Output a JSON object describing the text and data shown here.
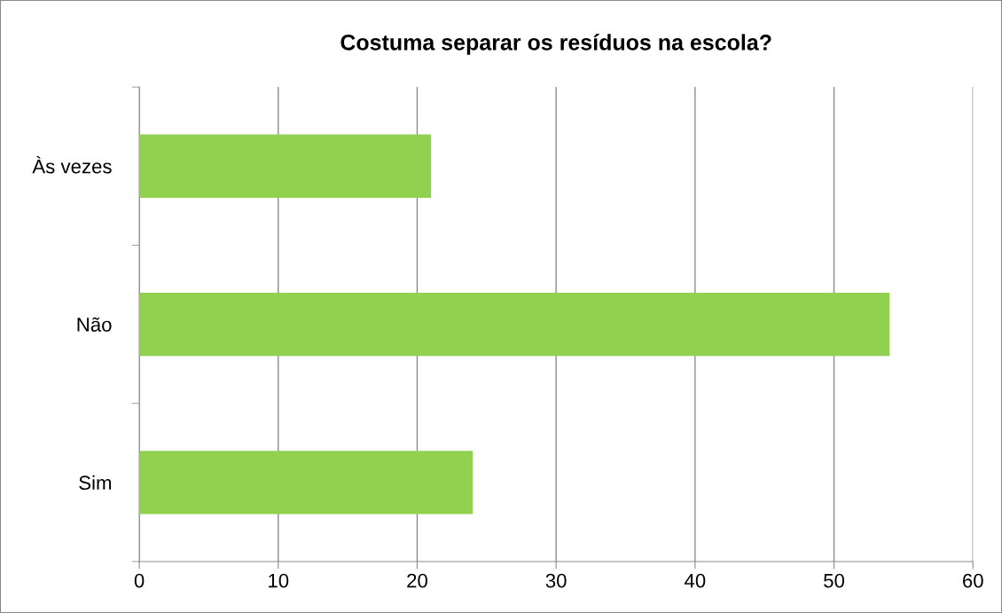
{
  "chart_data": {
    "type": "bar",
    "orientation": "horizontal",
    "title": "Costuma separar os resíduos na escola?",
    "categories": [
      "Às vezes",
      "Não",
      "Sim"
    ],
    "values": [
      21,
      54,
      24
    ],
    "color": "#92d050",
    "xlim": [
      0,
      60
    ],
    "xticks": [
      0,
      10,
      20,
      30,
      40,
      50,
      60
    ],
    "grid": "x",
    "legend": false
  }
}
